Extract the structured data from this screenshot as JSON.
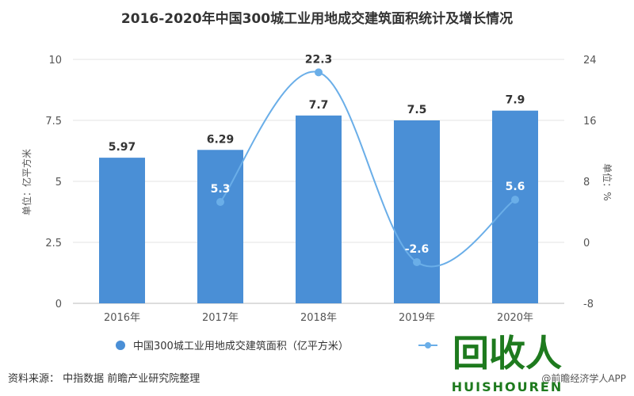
{
  "chart_data": {
    "type": "bar",
    "title": "2016-2020年中国300城工业用地成交建筑面积统计及增长情况",
    "categories": [
      "2016年",
      "2017年",
      "2018年",
      "2019年",
      "2020年"
    ],
    "series": [
      {
        "name": "中国300城工业用地成交建筑面积（亿平方米）",
        "type": "bar",
        "axis": "left",
        "values": [
          5.97,
          6.29,
          7.7,
          7.5,
          7.9
        ],
        "color": "#4a8fd6"
      },
      {
        "name": "",
        "type": "line",
        "axis": "right",
        "values": [
          null,
          5.3,
          22.3,
          -2.6,
          5.6
        ],
        "labels": [
          "",
          "5.3",
          "22.3",
          "-2.6",
          "5.6"
        ],
        "color": "#6aaee8"
      }
    ],
    "ylabel": "单位：亿平方米",
    "ylabel_right": "单位：%",
    "ylim": [
      0,
      10
    ],
    "yticks": [
      "0",
      "2.5",
      "5",
      "7.5",
      "10"
    ],
    "ylim_right": [
      -8,
      24
    ],
    "yticks_right": [
      "-8",
      "0",
      "8",
      "16",
      "24"
    ],
    "grid": true,
    "legend": "bottom"
  },
  "source": "资料来源：  中指数据 前瞻产业研究院整理",
  "credit": "@前瞻经济学人APP",
  "logo": {
    "text": "回收人",
    "subtext": "HUISHOUREN"
  }
}
